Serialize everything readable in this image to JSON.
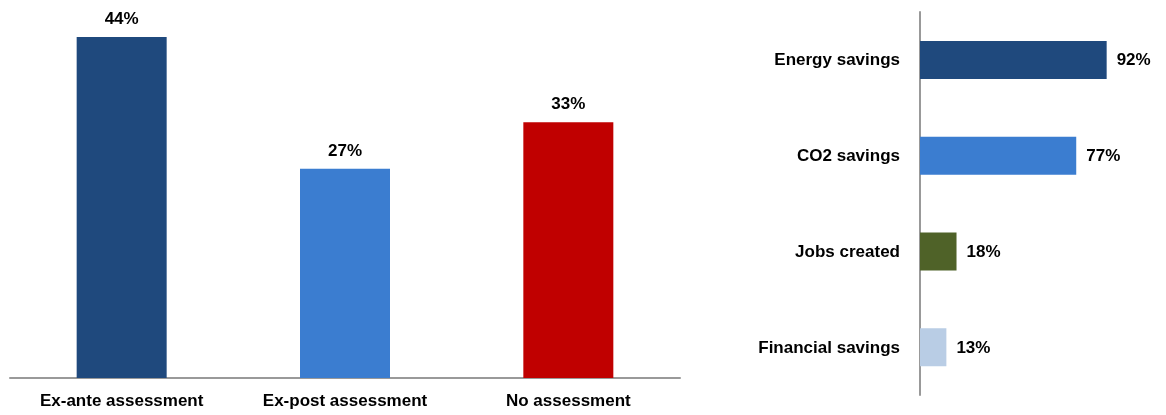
{
  "chart_data": [
    {
      "type": "bar",
      "categories": [
        "Ex-ante assessment",
        "Ex-post assessment",
        "No assessment"
      ],
      "values": [
        44,
        27,
        33
      ],
      "colors": [
        "#1f497d",
        "#3b7dd0",
        "#c00000"
      ],
      "value_labels": [
        "44%",
        "27%",
        "33%"
      ]
    },
    {
      "type": "bar",
      "orientation": "horizontal",
      "categories": [
        "Energy savings",
        "CO2 savings",
        "Jobs created",
        "Financial savings"
      ],
      "values": [
        92,
        77,
        18,
        13
      ],
      "colors": [
        "#1f497d",
        "#3b7dd0",
        "#4f6228",
        "#b9cde5"
      ],
      "value_labels": [
        "92%",
        "77%",
        "18%",
        "13%"
      ]
    }
  ]
}
